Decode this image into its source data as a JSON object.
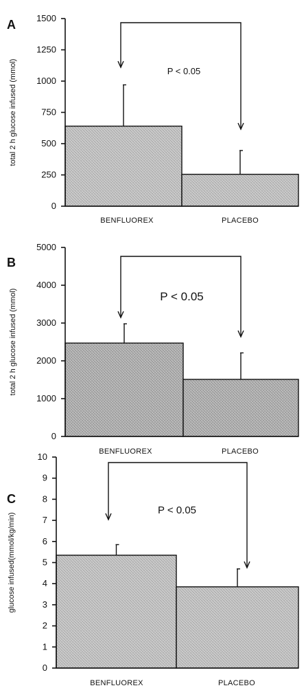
{
  "chart_data": [
    {
      "panel": "A",
      "type": "bar",
      "categories": [
        "BENFLUOREX",
        "PLACEBO"
      ],
      "values": [
        640,
        255
      ],
      "errors": [
        330,
        190
      ],
      "ylabel": "total 2 h glucose infused (mmol)",
      "ylim": [
        0,
        1500
      ],
      "yticks": [
        0,
        250,
        500,
        750,
        1000,
        1250,
        1500
      ],
      "annotation": "P < 0.05"
    },
    {
      "panel": "B",
      "type": "bar",
      "categories": [
        "BENFLUOREX",
        "PLACEBO"
      ],
      "values": [
        2470,
        1510
      ],
      "errors": [
        510,
        700
      ],
      "ylabel": "total 2 h glucose infused (mmol)",
      "ylim": [
        0,
        5000
      ],
      "yticks": [
        0,
        1000,
        2000,
        3000,
        4000,
        5000
      ],
      "annotation": "P < 0.05"
    },
    {
      "panel": "C",
      "type": "bar",
      "categories": [
        "BENFLUOREX",
        "PLACEBO"
      ],
      "values": [
        5.35,
        3.85
      ],
      "errors": [
        0.5,
        0.85
      ],
      "ylabel": "glucose infused(mmol/kg/min)",
      "ylim": [
        0,
        10
      ],
      "yticks": [
        0,
        1,
        2,
        3,
        4,
        5,
        6,
        7,
        8,
        9,
        10
      ],
      "annotation": "P < 0.05"
    }
  ]
}
